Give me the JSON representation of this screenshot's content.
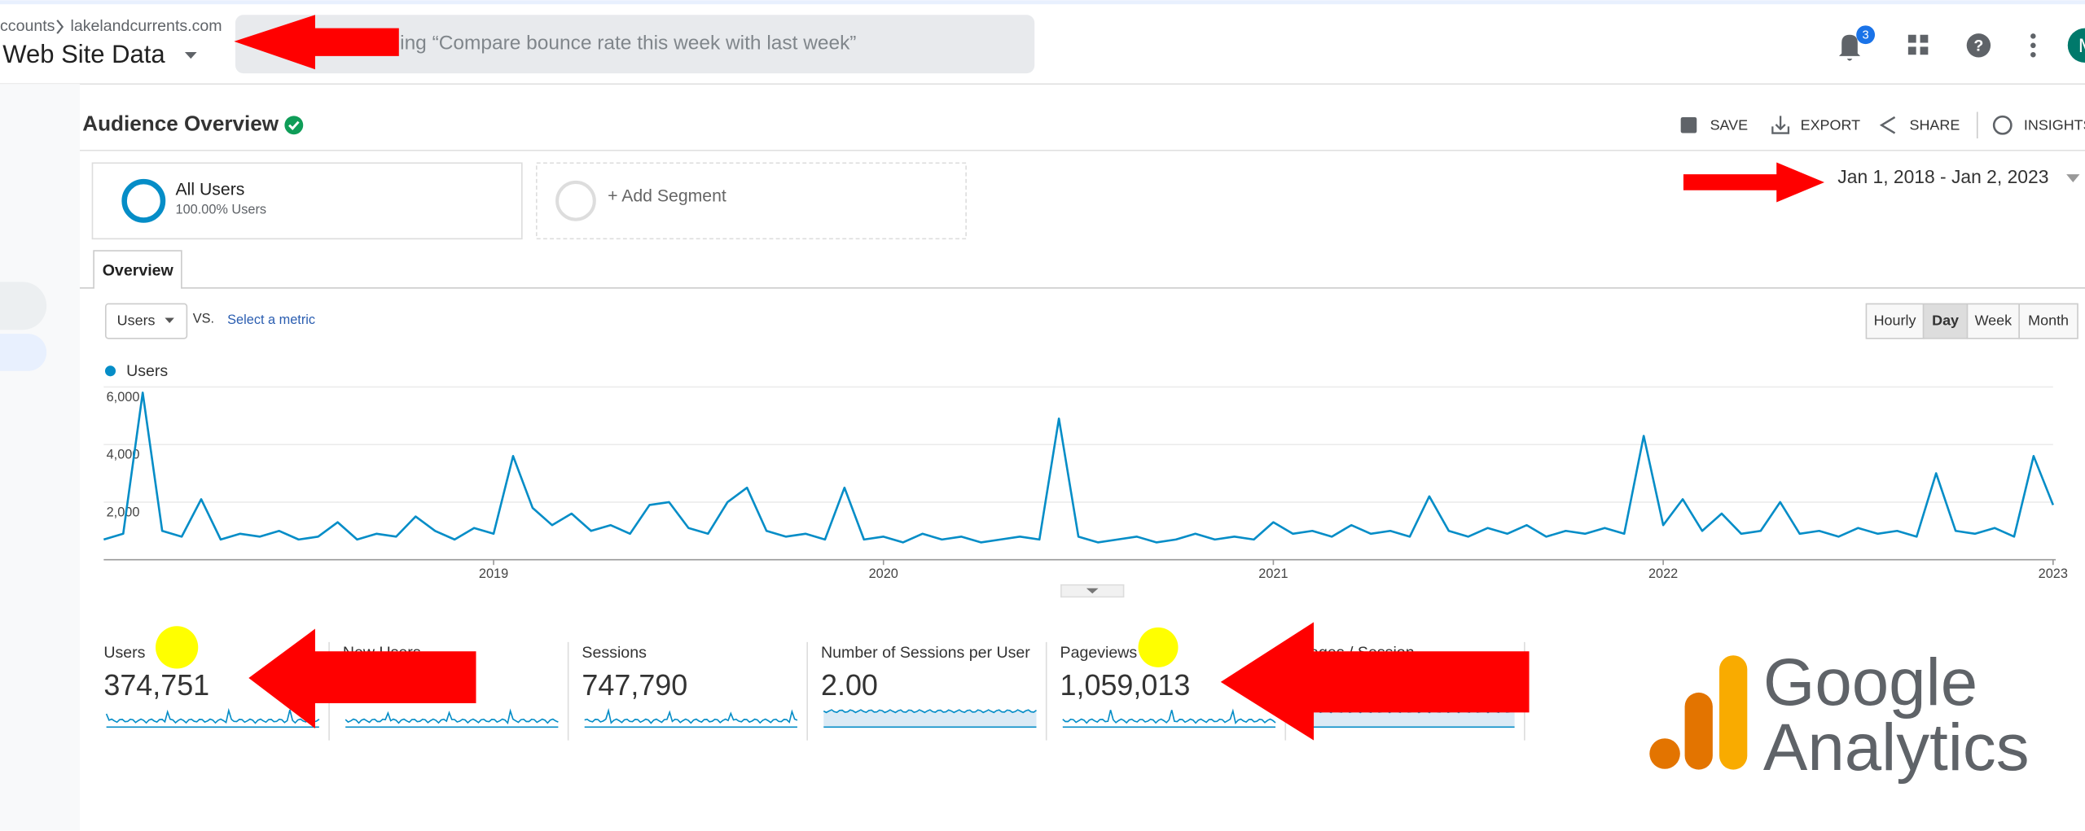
{
  "header": {
    "breadcrumb": [
      "ccounts",
      "lakelandcurrents.com"
    ],
    "property": "Web Site Data",
    "search": "ching “Compare bounce rate this week with last week”",
    "notifications": "3",
    "avatar": "M"
  },
  "report": {
    "title": "Audience Overview",
    "actions": [
      "SAVE",
      "EXPORT",
      "SHARE",
      "INSIGHTS"
    ],
    "segments": {
      "name": "All Users",
      "share": "100.00% Users",
      "add": "+ Add Segment"
    },
    "date_range": "Jan 1, 2018 - Jan 2, 2023",
    "tab": "Overview",
    "metric_select": "Users",
    "vs": "VS.",
    "select_metric": "Select a metric",
    "granularity": [
      "Hourly",
      "Day",
      "Week",
      "Month"
    ]
  },
  "chart_data": {
    "type": "line",
    "x": [
      2018,
      2018.05,
      2018.1,
      2018.15,
      2018.2,
      2018.25,
      2018.3,
      2018.35,
      2018.4,
      2018.45,
      2018.5,
      2018.55,
      2018.6,
      2018.65,
      2018.7,
      2018.75,
      2018.8,
      2018.85,
      2018.9,
      2018.95,
      2019,
      2019.05,
      2019.1,
      2019.15,
      2019.2,
      2019.25,
      2019.3,
      2019.35,
      2019.4,
      2019.45,
      2019.5,
      2019.55,
      2019.6,
      2019.65,
      2019.7,
      2019.75,
      2019.8,
      2019.85,
      2019.9,
      2019.95,
      2020,
      2020.05,
      2020.1,
      2020.15,
      2020.2,
      2020.25,
      2020.3,
      2020.35,
      2020.4,
      2020.45,
      2020.5,
      2020.55,
      2020.6,
      2020.65,
      2020.7,
      2020.75,
      2020.8,
      2020.85,
      2020.9,
      2020.95,
      2021,
      2021.05,
      2021.1,
      2021.15,
      2021.2,
      2021.25,
      2021.3,
      2021.35,
      2021.4,
      2021.45,
      2021.5,
      2021.55,
      2021.6,
      2021.65,
      2021.7,
      2021.75,
      2021.8,
      2021.85,
      2021.9,
      2021.95,
      2022,
      2022.05,
      2022.1,
      2022.15,
      2022.2,
      2022.25,
      2022.3,
      2022.35,
      2022.4,
      2022.45,
      2022.5,
      2022.55,
      2022.6,
      2022.65,
      2022.7,
      2022.75,
      2022.8,
      2022.85,
      2022.9,
      2022.95,
      2023
    ],
    "series": [
      {
        "name": "Users",
        "color": "#058dc7",
        "values": [
          700,
          900,
          5800,
          1000,
          800,
          2100,
          700,
          900,
          800,
          1000,
          700,
          800,
          1300,
          700,
          900,
          800,
          1500,
          1000,
          700,
          1100,
          900,
          3600,
          1800,
          1200,
          1600,
          1000,
          1200,
          900,
          1900,
          2000,
          1100,
          900,
          2000,
          2500,
          1000,
          800,
          900,
          700,
          2500,
          700,
          800,
          600,
          900,
          700,
          800,
          600,
          700,
          800,
          700,
          4900,
          800,
          600,
          700,
          800,
          600,
          700,
          900,
          700,
          800,
          700,
          1300,
          900,
          1000,
          800,
          1200,
          900,
          1000,
          800,
          2200,
          1000,
          800,
          1100,
          900,
          1200,
          800,
          1000,
          900,
          1100,
          900,
          4300,
          1200,
          2100,
          1000,
          1600,
          900,
          1000,
          2000,
          900,
          1000,
          800,
          1100,
          900,
          1000,
          800,
          3000,
          1000,
          900,
          1100,
          800,
          3600,
          1900
        ]
      }
    ],
    "xlim": [
      2018,
      2023
    ],
    "xticks": [
      2019,
      2020,
      2021,
      2022,
      2023
    ],
    "ylim": [
      0,
      6000
    ],
    "yticks": [
      {
        "value": 2000,
        "label": "2,000"
      },
      {
        "value": 4000,
        "label": "4,000"
      },
      {
        "value": 6000,
        "label": "6,000"
      }
    ],
    "grid": true
  },
  "metrics": [
    {
      "label": "Users",
      "value": "374,751"
    },
    {
      "label": "New Users"
    },
    {
      "label": "Sessions",
      "value": "747,790"
    },
    {
      "label": "Number of Sessions per User",
      "value": "2.00"
    },
    {
      "label": "Pageviews",
      "value": "1,059,013"
    },
    {
      "label": "Pages / Session"
    }
  ],
  "logo": [
    "Google",
    "Analytics"
  ]
}
